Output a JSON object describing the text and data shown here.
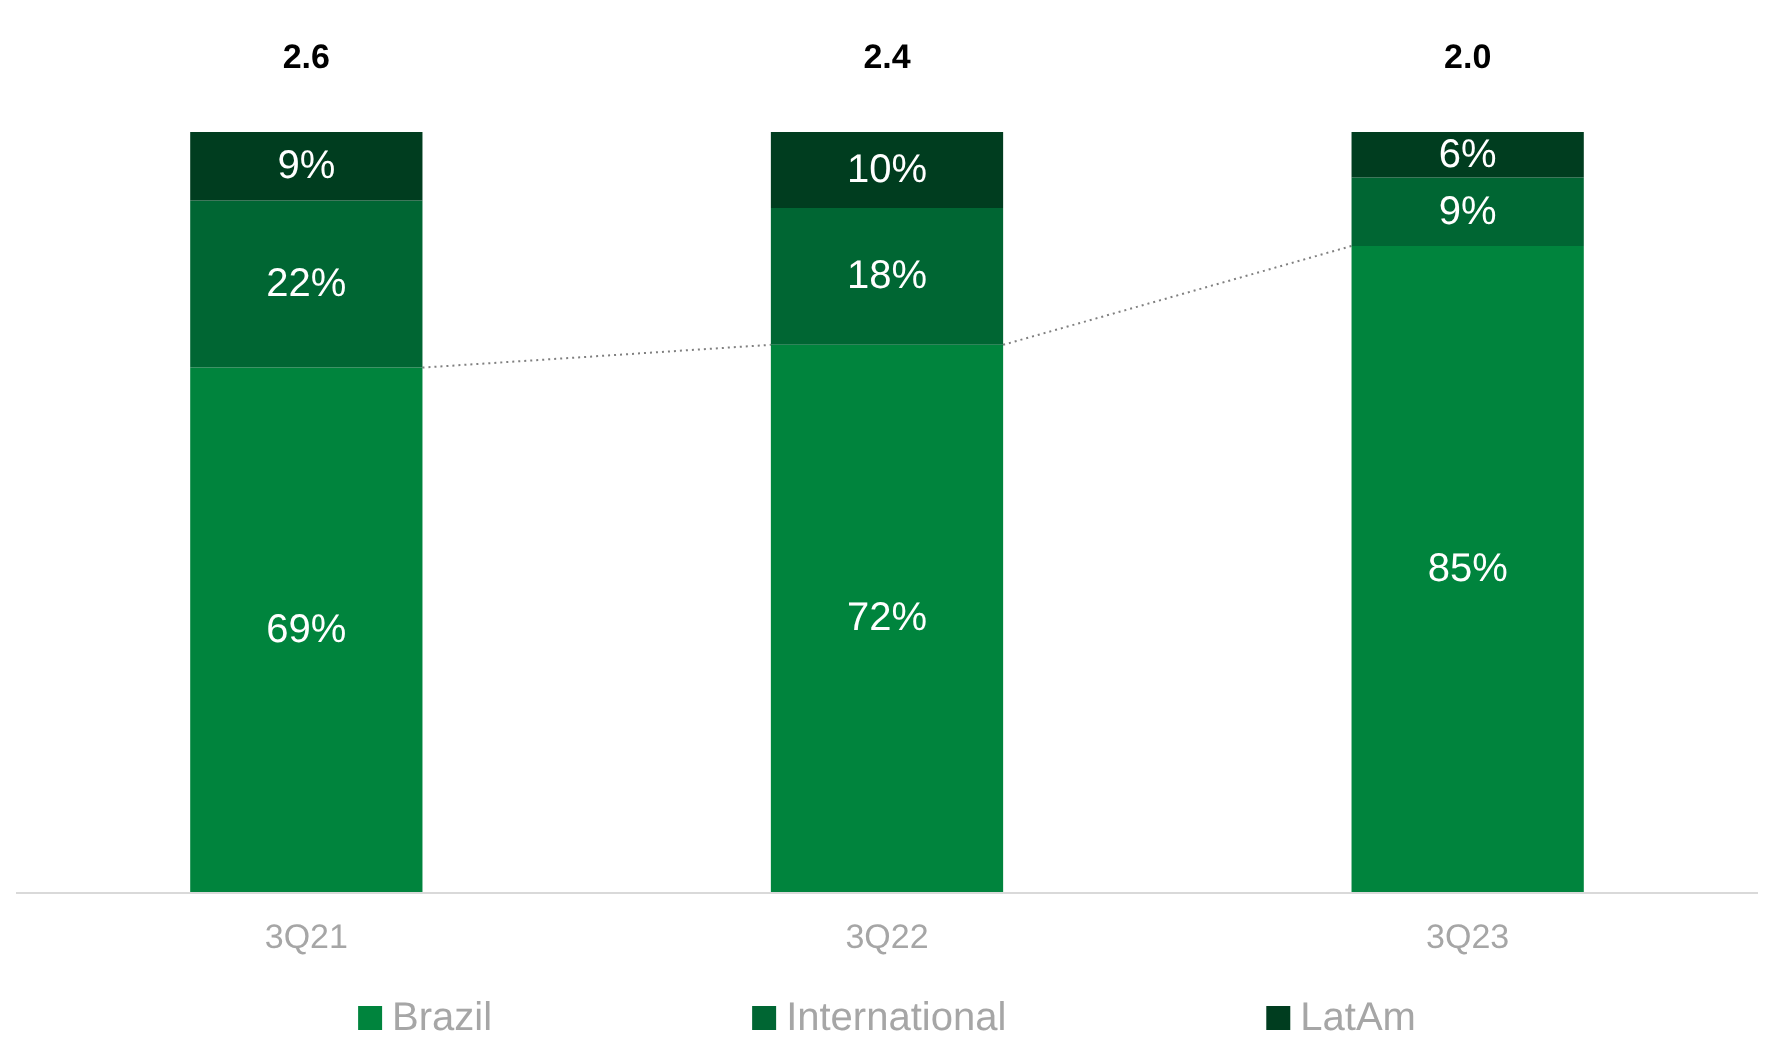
{
  "chart_data": {
    "type": "bar",
    "stacked": true,
    "categories": [
      "3Q21",
      "3Q22",
      "3Q23"
    ],
    "series": [
      {
        "name": "Brazil",
        "color": "#00843d",
        "values": [
          69,
          72,
          85
        ],
        "value_labels": [
          "69%",
          "72%",
          "85%"
        ]
      },
      {
        "name": "International",
        "color": "#006633",
        "values": [
          22,
          18,
          9
        ],
        "value_labels": [
          "22%",
          "18%",
          "9%"
        ]
      },
      {
        "name": "LatAm",
        "color": "#003d1f",
        "values": [
          9,
          10,
          6
        ],
        "value_labels": [
          "9%",
          "10%",
          "6%"
        ]
      }
    ],
    "annotations": [
      "2.6",
      "2.4",
      "2.0"
    ],
    "legend": "bottom"
  }
}
